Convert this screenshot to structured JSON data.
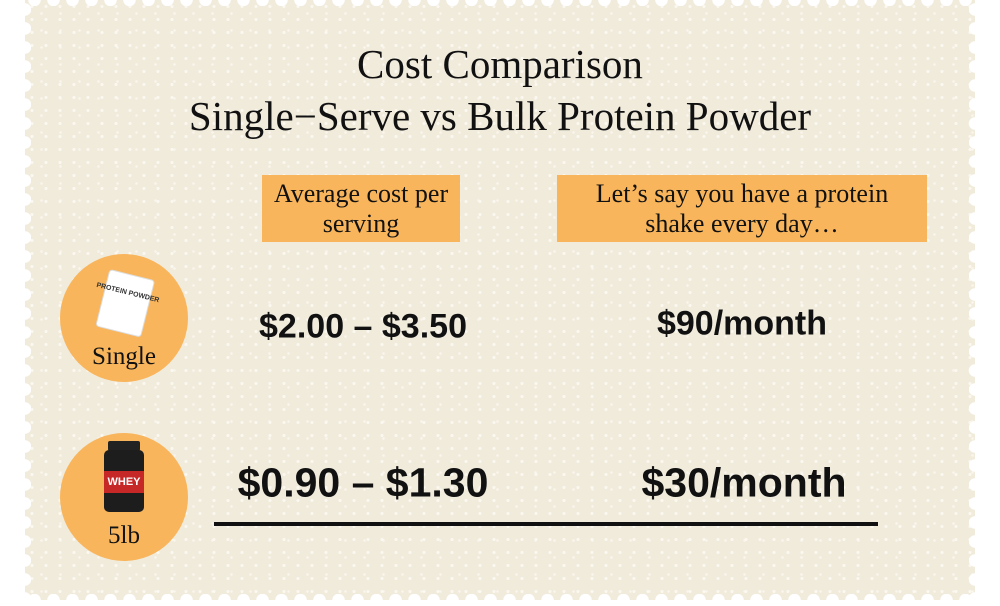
{
  "title": [
    "Cost Comparison",
    "Single−Serve vs Bulk Protein Powder"
  ],
  "columns": [
    "Average cost per serving",
    "Let’s say you have a protein shake every day…"
  ],
  "rows": [
    {
      "label": "Single",
      "icon_text": "PROTEIN POWDER",
      "cost": "$2.00 – $3.50",
      "monthly": "$90/month"
    },
    {
      "label": "5lb",
      "icon_text": "WHEY",
      "cost": "$0.90 – $1.30",
      "monthly": "$30/month"
    }
  ]
}
